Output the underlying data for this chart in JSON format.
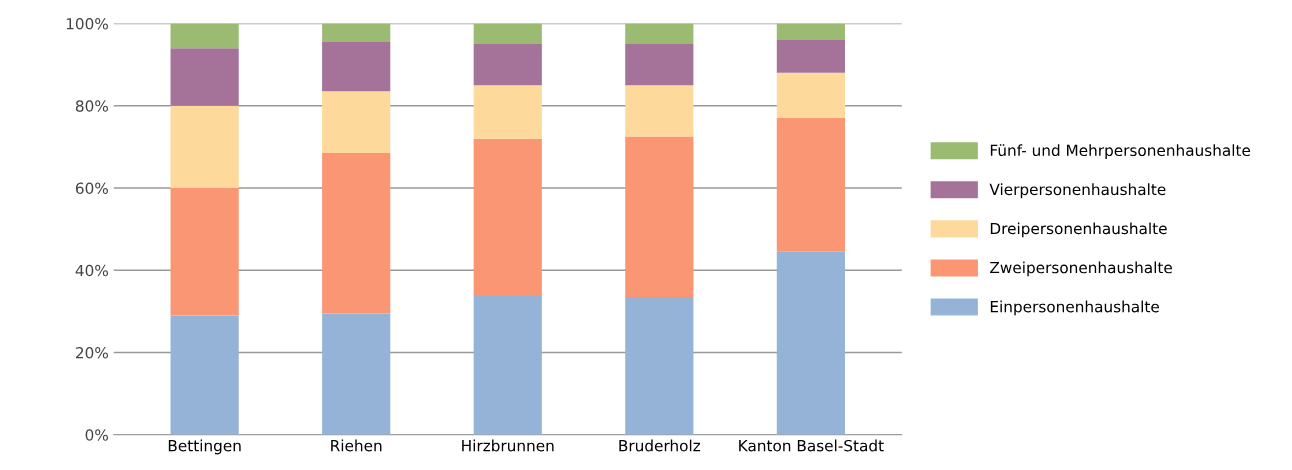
{
  "chart_data": {
    "type": "bar",
    "stacked": true,
    "categories": [
      "Bettingen",
      "Riehen",
      "Hirzbrunnen",
      "Bruderholz",
      "Kanton Basel-Stadt"
    ],
    "series": [
      {
        "name": "Einpersonenhaushalte",
        "color": "#95b3d7",
        "values": [
          29,
          29.5,
          34,
          33.5,
          44.5
        ]
      },
      {
        "name": "Zweipersonenhaushalte",
        "color": "#fa9673",
        "values": [
          31,
          39,
          38,
          39,
          32.5
        ]
      },
      {
        "name": "Dreipersonenhaushalte",
        "color": "#fdd99b",
        "values": [
          20,
          15,
          13,
          12.5,
          11
        ]
      },
      {
        "name": "Vierpersonenhaushalte",
        "color": "#a5739a",
        "values": [
          14,
          12,
          10,
          10,
          8
        ]
      },
      {
        "name": "Fünf- und Mehrpersonenhaushalte",
        "color": "#9bbb73",
        "values": [
          6,
          4.5,
          5,
          5,
          4
        ]
      }
    ],
    "ylim": [
      0,
      100
    ],
    "yticks": [
      {
        "value": 0,
        "label": "0%"
      },
      {
        "value": 20,
        "label": "20%"
      },
      {
        "value": 40,
        "label": "40%"
      },
      {
        "value": 60,
        "label": "60%"
      },
      {
        "value": 80,
        "label": "80%"
      },
      {
        "value": 100,
        "label": "100%"
      }
    ],
    "grid": "y",
    "legend": "right"
  }
}
